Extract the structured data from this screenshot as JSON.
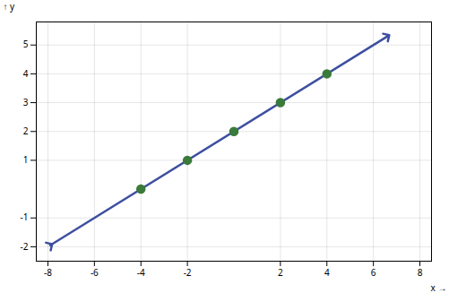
{
  "chart_data": {
    "type": "scatter",
    "xlabel": "x",
    "ylabel": "y",
    "xlim": [
      -8.5,
      8.5
    ],
    "ylim": [
      -2.5,
      5.8
    ],
    "xticks": [
      -8,
      -6,
      -4,
      -2,
      2,
      4,
      6,
      8
    ],
    "yticks": [
      -2,
      -1,
      1,
      2,
      3,
      4,
      5
    ],
    "grid": true,
    "series": [
      {
        "type": "line",
        "color": "#3d4fa0",
        "marker": "arrow",
        "x": [
          -7.9,
          6.6
        ],
        "values": [
          -1.95,
          5.3
        ]
      },
      {
        "type": "scatter",
        "color": "#3a7a3a",
        "marker": "circle",
        "x": [
          -4,
          -2,
          0,
          2,
          4
        ],
        "values": [
          0,
          1,
          2,
          3,
          4
        ]
      }
    ]
  }
}
